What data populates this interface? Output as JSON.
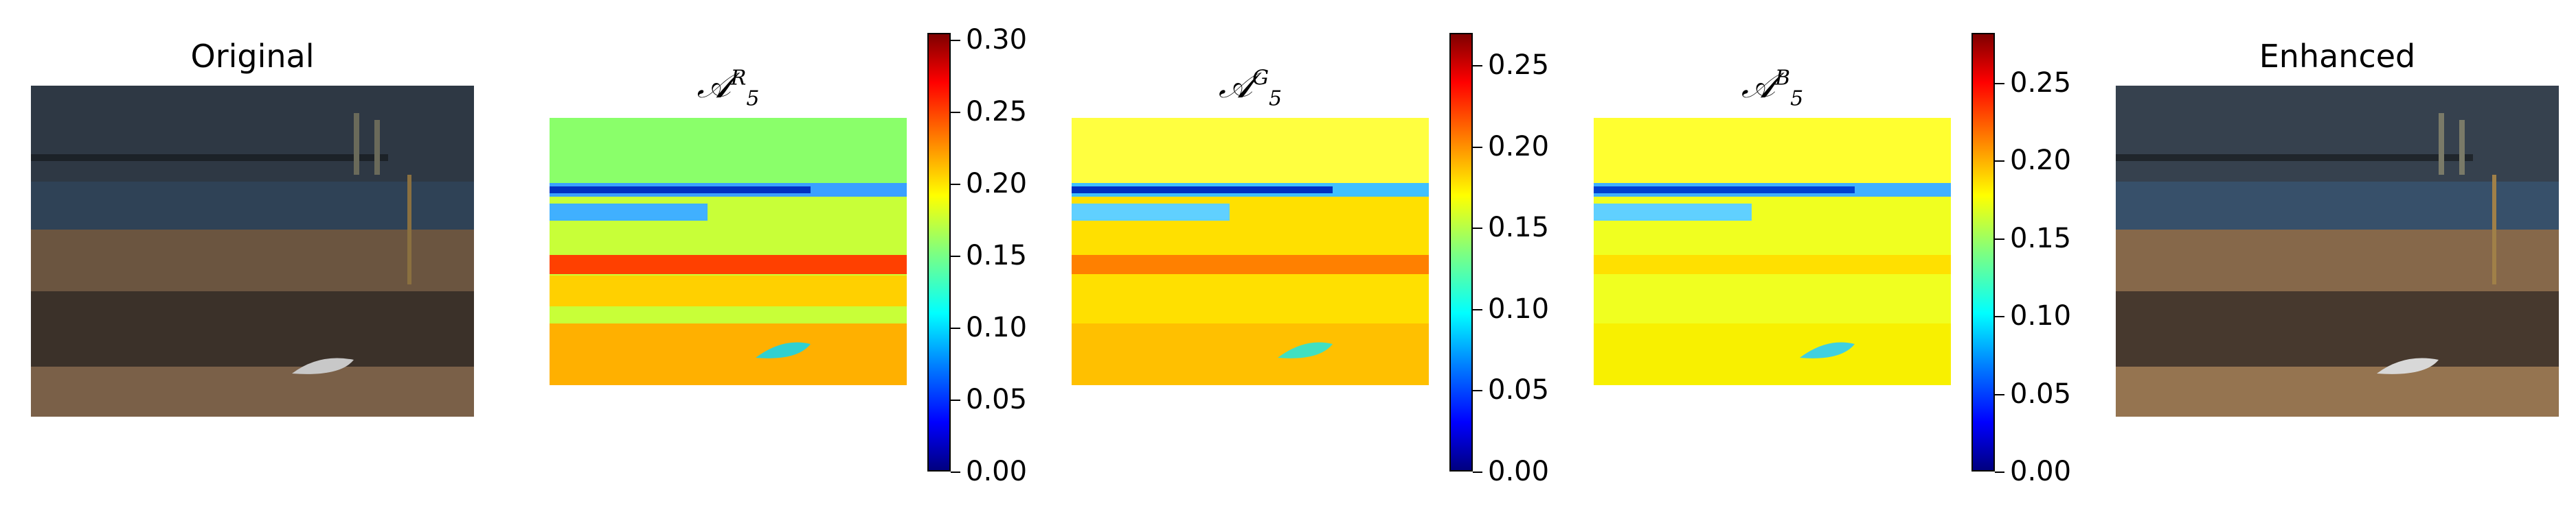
{
  "panels": {
    "original": {
      "title": "Original"
    },
    "red": {
      "title_base": "𝒜",
      "title_sup": "R",
      "title_sub": "5",
      "colorbar_ticks": [
        "0.00",
        "0.05",
        "0.10",
        "0.15",
        "0.20",
        "0.25",
        "0.30"
      ]
    },
    "green": {
      "title_base": "𝒜",
      "title_sup": "G",
      "title_sub": "5",
      "colorbar_ticks": [
        "0.00",
        "0.05",
        "0.10",
        "0.15",
        "0.20",
        "0.25"
      ]
    },
    "blue": {
      "title_base": "𝒜",
      "title_sup": "B",
      "title_sub": "5",
      "colorbar_ticks": [
        "0.00",
        "0.05",
        "0.10",
        "0.15",
        "0.20",
        "0.25"
      ]
    },
    "enhanced": {
      "title": "Enhanced"
    }
  },
  "colormap": "jet",
  "colors": {
    "sky": "#2f3a46",
    "water": "#34475a",
    "sand": "#8a6a45",
    "shadow": "#3a3028"
  }
}
